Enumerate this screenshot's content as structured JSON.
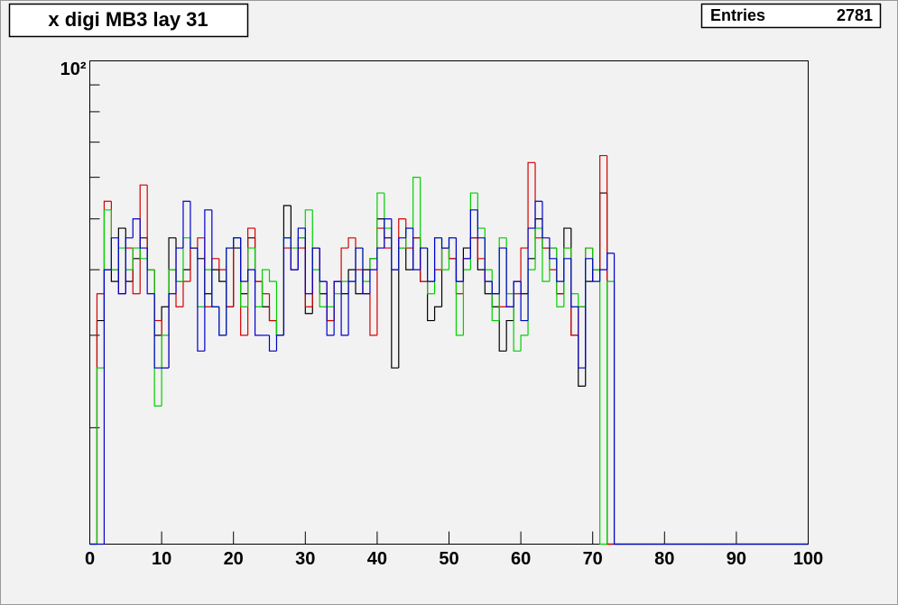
{
  "chart_data": {
    "type": "histogram",
    "title": "x digi MB3 lay 31",
    "stats": {
      "label": "Entries",
      "value": 2781
    },
    "bins": [
      0,
      1,
      2,
      3,
      4,
      5,
      6,
      7,
      8,
      9,
      10,
      11,
      12,
      13,
      14,
      15,
      16,
      17,
      18,
      19,
      20,
      21,
      22,
      23,
      24,
      25,
      26,
      27,
      28,
      29,
      30,
      31,
      32,
      33,
      34,
      35,
      36,
      37,
      38,
      39,
      40,
      41,
      42,
      43,
      44,
      45,
      46,
      47,
      48,
      49,
      50,
      51,
      52,
      53,
      54,
      55,
      56,
      57,
      58,
      59,
      60,
      61,
      62,
      63,
      64,
      65,
      66,
      67,
      68,
      69,
      70,
      71,
      72,
      73,
      74,
      75,
      76,
      77,
      78,
      79,
      80,
      81,
      82,
      83,
      84,
      85,
      86,
      87,
      88,
      89,
      90,
      91,
      92,
      93,
      94,
      95,
      96,
      97,
      98,
      99,
      100
    ],
    "xlim": [
      0,
      100
    ],
    "xticks": [
      0,
      10,
      20,
      30,
      40,
      50,
      60,
      70,
      80,
      90,
      100
    ],
    "ylim": [
      12,
      100
    ],
    "log_y": true,
    "yticks": [
      {
        "value": 100,
        "label": "10²"
      }
    ],
    "yminor_ticks": [
      20,
      30,
      40,
      50,
      60,
      70,
      80,
      90
    ],
    "series": [
      {
        "color": "#000000",
        "values": [
          0,
          32,
          40,
          38,
          48,
          38,
          42,
          46,
          40,
          30,
          34,
          46,
          38,
          40,
          44,
          42,
          36,
          40,
          38,
          34,
          44,
          36,
          46,
          38,
          34,
          32,
          30,
          53,
          40,
          46,
          33,
          44,
          36,
          32,
          38,
          36,
          40,
          36,
          40,
          42,
          50,
          46,
          26,
          44,
          40,
          46,
          38,
          32,
          34,
          44,
          42,
          38,
          44,
          46,
          40,
          36,
          34,
          28,
          32,
          38,
          36,
          42,
          50,
          44,
          44,
          36,
          48,
          30,
          24,
          38,
          40,
          56,
          0,
          0,
          0,
          0,
          0,
          0,
          0,
          0,
          0,
          0,
          0,
          0,
          0,
          0,
          0,
          0,
          0,
          0,
          0,
          0,
          0,
          0,
          0,
          0,
          0,
          0,
          0,
          0
        ]
      },
      {
        "color": "#d40000",
        "values": [
          0,
          36,
          54,
          40,
          36,
          44,
          36,
          58,
          40,
          32,
          26,
          40,
          34,
          38,
          44,
          46,
          34,
          42,
          40,
          34,
          46,
          30,
          48,
          38,
          36,
          32,
          30,
          44,
          40,
          44,
          34,
          44,
          38,
          32,
          38,
          44,
          46,
          40,
          36,
          30,
          48,
          44,
          40,
          50,
          44,
          46,
          38,
          38,
          40,
          44,
          42,
          36,
          42,
          46,
          42,
          38,
          36,
          34,
          34,
          36,
          44,
          64,
          46,
          44,
          40,
          36,
          44,
          30,
          34,
          44,
          40,
          66,
          0,
          0,
          0,
          0,
          0,
          0,
          0,
          0,
          0,
          0,
          0,
          0,
          0,
          0,
          0,
          0,
          0,
          0,
          0,
          0,
          0,
          0,
          0,
          0,
          0,
          0,
          0,
          0
        ]
      },
      {
        "color": "#00d000",
        "values": [
          0,
          26,
          52,
          40,
          44,
          40,
          44,
          42,
          40,
          22,
          30,
          40,
          38,
          46,
          44,
          34,
          40,
          34,
          30,
          44,
          46,
          34,
          44,
          34,
          40,
          38,
          30,
          46,
          44,
          46,
          52,
          40,
          34,
          34,
          36,
          38,
          38,
          44,
          38,
          42,
          56,
          48,
          40,
          44,
          48,
          60,
          44,
          36,
          46,
          40,
          46,
          30,
          40,
          56,
          48,
          40,
          32,
          46,
          36,
          28,
          30,
          40,
          48,
          38,
          44,
          34,
          44,
          36,
          34,
          44,
          40,
          0,
          38,
          0,
          0,
          0,
          0,
          0,
          0,
          0,
          0,
          0,
          0,
          0,
          0,
          0,
          0,
          0,
          0,
          0,
          0,
          0,
          0,
          0,
          0,
          0,
          0,
          0,
          0,
          0
        ]
      },
      {
        "color": "#0000cc",
        "values": [
          0,
          0,
          40,
          46,
          36,
          46,
          50,
          44,
          36,
          26,
          26,
          36,
          44,
          54,
          44,
          28,
          52,
          34,
          30,
          44,
          46,
          38,
          40,
          30,
          30,
          28,
          30,
          46,
          40,
          48,
          36,
          44,
          38,
          30,
          38,
          30,
          38,
          44,
          36,
          40,
          44,
          50,
          40,
          46,
          48,
          40,
          44,
          38,
          46,
          44,
          46,
          38,
          42,
          52,
          46,
          38,
          36,
          44,
          34,
          38,
          32,
          48,
          54,
          46,
          42,
          38,
          42,
          34,
          26,
          42,
          38,
          40,
          43,
          0,
          0,
          0,
          0,
          0,
          0,
          0,
          0,
          0,
          0,
          0,
          0,
          0,
          0,
          0,
          0,
          0,
          0,
          0,
          0,
          0,
          0,
          0,
          0,
          0,
          0,
          0
        ]
      }
    ]
  }
}
